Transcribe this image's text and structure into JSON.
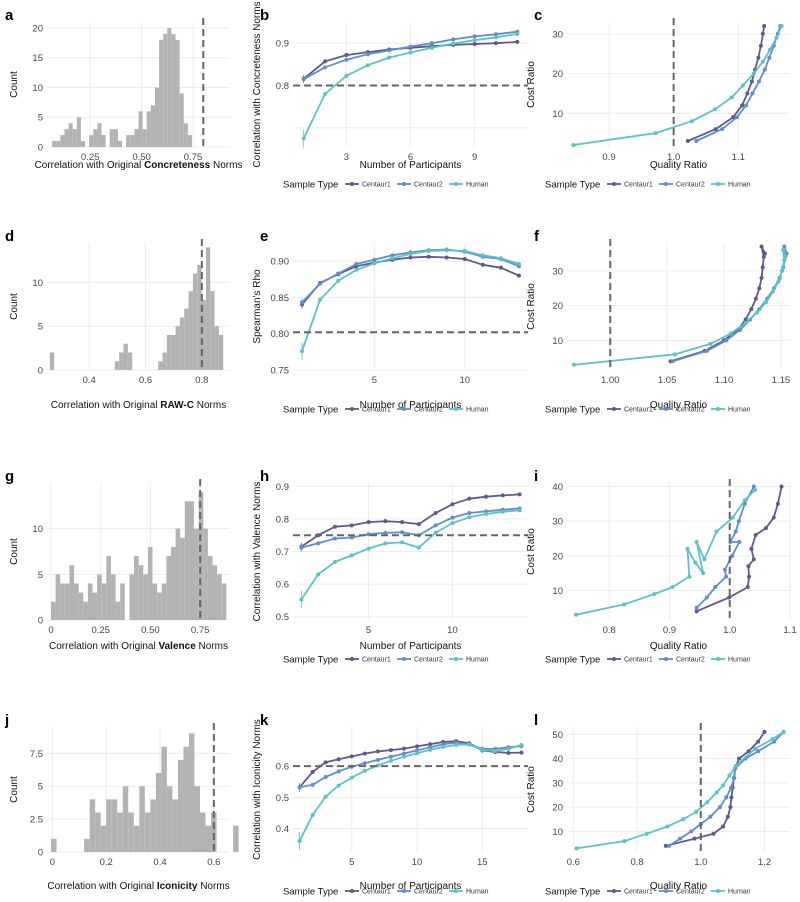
{
  "colors": {
    "Centaur1": "#5e5a8c",
    "Centaur2": "#5f8ec8",
    "Human": "#5bc2c7",
    "hist": "#b3b3b3",
    "grid": "#ececec",
    "dash": "#666666"
  },
  "legend": {
    "title": "Sample Type",
    "entries": [
      "Centaur1",
      "Centaur2",
      "Human"
    ]
  },
  "chart_data": [
    {
      "panel": "a",
      "type": "bar",
      "xlabel_parts": [
        "Correlation with Original ",
        "Concreteness",
        " Norms"
      ],
      "ylabel": "Count",
      "xlim": [
        0.04,
        0.93
      ],
      "ylim": [
        0,
        21
      ],
      "xticks": [
        0.25,
        0.5,
        0.75
      ],
      "xtick_labels": [
        "0.25",
        "0.50",
        "0.75"
      ],
      "yticks": [
        0,
        5,
        10,
        15,
        20
      ],
      "vline": 0.8,
      "bin_start": 0.065,
      "bin_width": 0.02,
      "values": [
        1,
        1,
        2,
        3,
        4,
        3,
        5,
        1,
        0,
        2,
        3,
        4,
        2,
        0,
        3,
        3,
        1,
        0,
        2,
        2,
        3,
        6,
        3,
        6,
        7,
        10,
        18,
        19,
        20,
        19,
        18,
        9,
        4,
        2
      ]
    },
    {
      "panel": "b",
      "type": "line",
      "xlabel": "Number of Participants",
      "ylabel": "Correlation with Concreteness Norms",
      "xlim": [
        0.5,
        11.5
      ],
      "ylim": [
        0.655,
        0.95
      ],
      "xticks": [
        3,
        6,
        9
      ],
      "yticks": [
        0.7,
        0.8,
        0.9
      ],
      "ytick_labels": [
        "",
        "0.8",
        "0.9"
      ],
      "hline": 0.8,
      "x": [
        1,
        2,
        3,
        4,
        5,
        6,
        7,
        8,
        9,
        10,
        11
      ],
      "series": [
        {
          "name": "Centaur1",
          "values": [
            0.816,
            0.857,
            0.872,
            0.879,
            0.885,
            0.889,
            0.893,
            0.896,
            0.898,
            0.9,
            0.903
          ]
        },
        {
          "name": "Centaur2",
          "values": [
            0.815,
            0.843,
            0.861,
            0.874,
            0.883,
            0.892,
            0.9,
            0.909,
            0.916,
            0.921,
            0.927
          ]
        },
        {
          "name": "Human",
          "values": [
            0.675,
            0.78,
            0.823,
            0.848,
            0.866,
            0.878,
            0.889,
            0.899,
            0.907,
            0.914,
            0.922
          ]
        }
      ]
    },
    {
      "panel": "c",
      "type": "line",
      "xlabel": "Quality Ratio",
      "ylabel": "Cost Ratio",
      "xlim": [
        0.835,
        1.18
      ],
      "ylim": [
        1.5,
        33
      ],
      "xticks": [
        0.9,
        1.0,
        1.1
      ],
      "xtick_labels": [
        "0.9",
        "1.0",
        "1.1"
      ],
      "yticks": [
        10,
        20,
        30
      ],
      "vline": 1.0,
      "series": [
        {
          "name": "Centaur1",
          "x": [
            1.022,
            1.065,
            1.092,
            1.106,
            1.114,
            1.121,
            1.126,
            1.131,
            1.135,
            1.138,
            1.14
          ],
          "y": [
            3,
            6,
            9,
            12,
            15,
            18,
            21,
            24,
            27,
            30,
            32
          ]
        },
        {
          "name": "Centaur2",
          "x": [
            1.035,
            1.075,
            1.098,
            1.112,
            1.122,
            1.132,
            1.141,
            1.148,
            1.155,
            1.161,
            1.165
          ],
          "y": [
            3,
            6,
            9,
            12,
            15,
            18,
            21,
            24,
            27,
            30,
            32
          ]
        },
        {
          "name": "Human",
          "x": [
            0.845,
            0.972,
            1.028,
            1.064,
            1.09,
            1.107,
            1.124,
            1.138,
            1.149,
            1.159,
            1.167
          ],
          "y": [
            2,
            5,
            8,
            11,
            14,
            17,
            20,
            23,
            26,
            29,
            32
          ]
        }
      ]
    },
    {
      "panel": "d",
      "type": "bar",
      "xlabel_parts": [
        "Correlation with Original ",
        "RAW-C",
        " Norms"
      ],
      "ylabel": "Count",
      "xlim": [
        0.25,
        0.9
      ],
      "ylim": [
        0,
        14.5
      ],
      "xticks": [
        0.4,
        0.6,
        0.8
      ],
      "xtick_labels": [
        "0.4",
        "0.6",
        "0.8"
      ],
      "yticks": [
        0,
        5,
        10
      ],
      "vline": 0.8,
      "bin_start": 0.26,
      "bin_width": 0.0154,
      "values": [
        2,
        0,
        0,
        0,
        0,
        0,
        0,
        0,
        0,
        0,
        0,
        0,
        0,
        0,
        0,
        1,
        2,
        3,
        2,
        0,
        0,
        0,
        0,
        0,
        0,
        1,
        2,
        4,
        4,
        5,
        6,
        7,
        9,
        11,
        12,
        8,
        14,
        9,
        5,
        4
      ]
    },
    {
      "panel": "e",
      "type": "line",
      "xlabel": "Number of Participants",
      "ylabel": "Spearman's Rho",
      "xlim": [
        0.5,
        13.5
      ],
      "ylim": [
        0.75,
        0.925
      ],
      "xticks": [
        5,
        10
      ],
      "yticks": [
        0.75,
        0.8,
        0.85,
        0.9
      ],
      "ytick_labels": [
        "0.75",
        "0.80",
        "0.85",
        "0.90"
      ],
      "hline": 0.802,
      "x": [
        1,
        2,
        3,
        4,
        5,
        6,
        7,
        8,
        9,
        10,
        11,
        12,
        13
      ],
      "series": [
        {
          "name": "Centaur1",
          "values": [
            0.84,
            0.87,
            0.882,
            0.893,
            0.898,
            0.902,
            0.905,
            0.906,
            0.905,
            0.903,
            0.895,
            0.891,
            0.88
          ]
        },
        {
          "name": "Centaur2",
          "values": [
            0.843,
            0.869,
            0.883,
            0.896,
            0.902,
            0.908,
            0.912,
            0.915,
            0.916,
            0.913,
            0.906,
            0.903,
            0.893
          ]
        },
        {
          "name": "Human",
          "values": [
            0.776,
            0.847,
            0.873,
            0.888,
            0.897,
            0.904,
            0.91,
            0.914,
            0.915,
            0.914,
            0.908,
            0.904,
            0.896
          ]
        }
      ]
    },
    {
      "panel": "f",
      "type": "line",
      "xlabel": "Quality Ratio",
      "ylabel": "Cost Ratio",
      "xlim": [
        0.962,
        1.158
      ],
      "ylim": [
        1.5,
        38
      ],
      "xticks": [
        1.0,
        1.05,
        1.1,
        1.15
      ],
      "xtick_labels": [
        "1.00",
        "1.05",
        "1.10",
        "1.15"
      ],
      "yticks": [
        10,
        20,
        30
      ],
      "vline": 1.0,
      "series": [
        {
          "name": "Centaur1",
          "x": [
            1.053,
            1.083,
            1.1,
            1.112,
            1.119,
            1.124,
            1.128,
            1.131,
            1.133,
            1.134,
            1.135,
            1.133,
            1.136
          ],
          "y": [
            4,
            7,
            10,
            13,
            16,
            19,
            22,
            25,
            28,
            31,
            34,
            37,
            35
          ]
        },
        {
          "name": "Centaur2",
          "x": [
            1.055,
            1.085,
            1.102,
            1.114,
            1.123,
            1.131,
            1.138,
            1.144,
            1.149,
            1.152,
            1.154,
            1.153,
            1.155
          ],
          "y": [
            4,
            7,
            10,
            13,
            16,
            19,
            22,
            25,
            28,
            31,
            34,
            37,
            35
          ]
        },
        {
          "name": "Human",
          "x": [
            0.968,
            1.057,
            1.088,
            1.106,
            1.119,
            1.129,
            1.137,
            1.143,
            1.148,
            1.151,
            1.153,
            1.152,
            1.154
          ],
          "y": [
            3,
            6,
            9,
            12,
            15,
            18,
            21,
            24,
            27,
            30,
            33,
            36,
            34
          ]
        }
      ]
    },
    {
      "panel": "g",
      "type": "bar",
      "xlabel_parts": [
        "Correlation with Original ",
        "Valence",
        " Norms"
      ],
      "ylabel": "Count",
      "xlim": [
        -0.02,
        0.9
      ],
      "ylim": [
        0,
        15
      ],
      "xticks": [
        0,
        0.25,
        0.5,
        0.75
      ],
      "xtick_labels": [
        "0",
        "0.25",
        "0.50",
        "0.75"
      ],
      "yticks": [
        0,
        5,
        10
      ],
      "vline": 0.75,
      "bin_start": 0.0,
      "bin_width": 0.0232,
      "values": [
        2,
        5,
        4,
        4,
        6,
        4,
        3,
        2,
        4,
        3,
        5,
        4,
        7,
        5,
        2,
        4,
        0,
        5,
        7,
        6,
        5,
        8,
        4,
        3,
        4,
        7,
        8,
        10,
        9,
        13,
        13,
        10,
        14,
        10,
        7,
        6,
        5,
        4
      ]
    },
    {
      "panel": "h",
      "type": "line",
      "xlabel": "Number of Participants",
      "ylabel": "Correlation with Valence Norms",
      "xlim": [
        0.5,
        14.5
      ],
      "ylim": [
        0.49,
        0.91
      ],
      "xticks": [
        5,
        10
      ],
      "yticks": [
        0.5,
        0.6,
        0.7,
        0.8,
        0.9
      ],
      "ytick_labels": [
        "0.5",
        "0.6",
        "0.7",
        "0.8",
        "0.9"
      ],
      "hline": 0.75,
      "x": [
        1,
        2,
        3,
        4,
        5,
        6,
        7,
        8,
        9,
        10,
        11,
        12,
        13,
        14
      ],
      "series": [
        {
          "name": "Centaur1",
          "values": [
            0.715,
            0.75,
            0.776,
            0.78,
            0.79,
            0.793,
            0.79,
            0.784,
            0.818,
            0.845,
            0.862,
            0.868,
            0.872,
            0.875
          ]
        },
        {
          "name": "Centaur2",
          "values": [
            0.712,
            0.725,
            0.74,
            0.743,
            0.753,
            0.757,
            0.759,
            0.75,
            0.78,
            0.804,
            0.818,
            0.823,
            0.828,
            0.832
          ]
        },
        {
          "name": "Human",
          "values": [
            0.553,
            0.63,
            0.668,
            0.688,
            0.709,
            0.725,
            0.728,
            0.712,
            0.758,
            0.787,
            0.805,
            0.815,
            0.822,
            0.826
          ]
        }
      ]
    },
    {
      "panel": "i",
      "type": "line",
      "xlabel": "Quality Ratio",
      "ylabel": "Cost Ratio",
      "xlim": [
        0.73,
        1.1
      ],
      "ylim": [
        1.5,
        41
      ],
      "xticks": [
        0.8,
        0.9,
        1.0,
        1.1
      ],
      "xtick_labels": [
        "0.8",
        "0.9",
        "1.0",
        "1.1"
      ],
      "yticks": [
        10,
        20,
        30,
        40
      ],
      "vline": 1.0,
      "series": [
        {
          "name": "Centaur1",
          "x": [
            0.945,
            0.999,
            1.03,
            1.032,
            1.031,
            1.04,
            1.036,
            1.043,
            1.06,
            1.073,
            1.08,
            1.086
          ],
          "y": [
            4,
            8,
            11,
            14,
            17,
            19,
            22,
            26,
            28,
            31,
            35,
            40
          ]
        },
        {
          "name": "Centaur2",
          "x": [
            0.945,
            0.962,
            0.976,
            0.994,
            0.992,
            1.004,
            1.016,
            1.001,
            1.01,
            1.015,
            1.025,
            1.04
          ],
          "y": [
            5,
            8,
            11,
            14,
            16,
            20,
            24,
            24,
            27,
            30,
            35,
            40
          ]
        },
        {
          "name": "Human",
          "x": [
            0.745,
            0.825,
            0.875,
            0.905,
            0.933,
            0.93,
            0.943,
            0.956,
            0.945,
            0.958,
            0.978,
            1.005,
            1.025,
            1.042
          ],
          "y": [
            3,
            6,
            9,
            11,
            14,
            22,
            18,
            15,
            24,
            19,
            27,
            31,
            36,
            39
          ]
        }
      ]
    },
    {
      "panel": "j",
      "type": "bar",
      "xlabel_parts": [
        "Correlation with Original ",
        "Iconicity",
        " Norms"
      ],
      "ylabel": "Count",
      "xlim": [
        -0.02,
        0.66
      ],
      "ylim": [
        0,
        9.5
      ],
      "xticks": [
        0,
        0.2,
        0.4,
        0.6
      ],
      "xtick_labels": [
        "0",
        "0.2",
        "0.4",
        "0.6"
      ],
      "yticks": [
        0,
        2.5,
        5,
        7.5
      ],
      "vline": 0.6,
      "bin_start": -0.005,
      "bin_width": 0.0205,
      "values": [
        1,
        0,
        0,
        0,
        0,
        0,
        1,
        4,
        3,
        2,
        4,
        4,
        3,
        5,
        3,
        2,
        5,
        3,
        4,
        6,
        8,
        5,
        4,
        7,
        8,
        9,
        5,
        3,
        2,
        3,
        0,
        0,
        0,
        2
      ]
    },
    {
      "panel": "k",
      "type": "line",
      "xlabel": "Number of Participants",
      "ylabel": "Correlation with Iconicity Norms",
      "xlim": [
        0.5,
        18.5
      ],
      "ylim": [
        0.325,
        0.725
      ],
      "xticks": [
        5,
        10,
        15
      ],
      "yticks": [
        0.4,
        0.5,
        0.6
      ],
      "ytick_labels": [
        "0.4",
        "0.5",
        "0.6"
      ],
      "hline": 0.6,
      "x": [
        1,
        2,
        3,
        4,
        5,
        6,
        7,
        8,
        9,
        10,
        11,
        12,
        13,
        14,
        15,
        16,
        17,
        18
      ],
      "series": [
        {
          "name": "Centaur1",
          "values": [
            0.532,
            0.581,
            0.612,
            0.622,
            0.631,
            0.64,
            0.647,
            0.651,
            0.656,
            0.663,
            0.67,
            0.677,
            0.68,
            0.673,
            0.65,
            0.645,
            0.642,
            0.643
          ]
        },
        {
          "name": "Centaur2",
          "values": [
            0.532,
            0.54,
            0.565,
            0.583,
            0.598,
            0.609,
            0.62,
            0.63,
            0.64,
            0.65,
            0.66,
            0.67,
            0.675,
            0.67,
            0.655,
            0.655,
            0.66,
            0.664
          ]
        },
        {
          "name": "Human",
          "values": [
            0.36,
            0.443,
            0.502,
            0.538,
            0.563,
            0.585,
            0.602,
            0.617,
            0.63,
            0.641,
            0.652,
            0.661,
            0.668,
            0.669,
            0.652,
            0.648,
            0.655,
            0.668
          ]
        }
      ]
    },
    {
      "panel": "l",
      "type": "line",
      "xlabel": "Quality Ratio",
      "ylabel": "Cost Ratio",
      "xlim": [
        0.58,
        1.28
      ],
      "ylim": [
        1.5,
        53
      ],
      "xticks": [
        0.6,
        0.8,
        1.0,
        1.2
      ],
      "xtick_labels": [
        "0.6",
        "0.8",
        "1.0",
        "1.2"
      ],
      "yticks": [
        10,
        20,
        30,
        40,
        50
      ],
      "vline": 1.0,
      "series": [
        {
          "name": "Centaur1",
          "x": [
            0.89,
            0.98,
            1.04,
            1.07,
            1.085,
            1.093,
            1.096,
            1.1,
            1.104,
            1.108,
            1.12,
            1.15,
            1.18,
            1.2
          ],
          "y": [
            4,
            7,
            9,
            12,
            16,
            20,
            24,
            28,
            32,
            36,
            40,
            43,
            47,
            51
          ]
        },
        {
          "name": "Centaur2",
          "x": [
            0.9,
            0.935,
            0.97,
            1.0,
            1.03,
            1.06,
            1.08,
            1.095,
            1.105,
            1.108,
            1.14,
            1.18,
            1.23,
            1.26
          ],
          "y": [
            4,
            7,
            10,
            13,
            16,
            20,
            24,
            28,
            32,
            36,
            40,
            43,
            47,
            51
          ]
        },
        {
          "name": "Human",
          "x": [
            0.61,
            0.76,
            0.83,
            0.895,
            0.945,
            0.985,
            1.02,
            1.05,
            1.07,
            1.09,
            1.11,
            1.17,
            1.225,
            1.26
          ],
          "y": [
            3,
            6,
            9,
            12,
            15,
            18,
            22,
            26,
            29,
            33,
            37,
            44,
            48,
            51
          ]
        }
      ]
    }
  ]
}
